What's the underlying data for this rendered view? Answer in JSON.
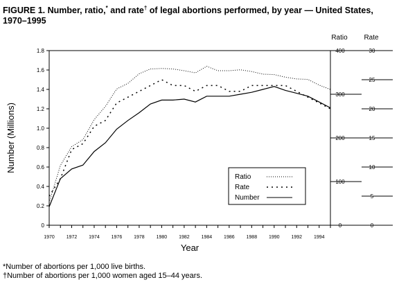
{
  "title": {
    "text": "FIGURE 1. Number, ratio,",
    "mark1": "*",
    "mid": " and rate",
    "mark2": "†",
    "rest": "  of legal abortions performed, by year — United States, 1970–1995"
  },
  "footnotes": {
    "ratio_note": "*Number of abortions per 1,000 live births.",
    "rate_note": "†Number of abortions per 1,000 women aged 15–44 years."
  },
  "chart_data": {
    "type": "line",
    "xlabel": "Year",
    "ylabel": "Number (Millions)",
    "xlim": [
      1970,
      1995
    ],
    "x_ticks": [
      "1970",
      "1972",
      "1974",
      "1976",
      "1978",
      "1980",
      "1982",
      "1984",
      "1986",
      "1988",
      "1990",
      "1992",
      "1994"
    ],
    "ylim": [
      0,
      1.8
    ],
    "y_ticks": [
      "0",
      "0.2",
      "0.4",
      "0.6",
      "0.8",
      "1.0",
      "1.2",
      "1.4",
      "1.6",
      "1.8"
    ],
    "right_axes": [
      {
        "label": "Ratio",
        "lim": [
          0,
          400
        ],
        "ticks": [
          "0",
          "100",
          "200",
          "300",
          "400"
        ]
      },
      {
        "label": "Rate",
        "lim": [
          0,
          30
        ],
        "ticks": [
          "0",
          "5",
          "10",
          "15",
          "20",
          "25",
          "30"
        ]
      }
    ],
    "legend_position": "bottom-right",
    "series": [
      {
        "name": "Ratio",
        "style": "dotted",
        "axis": "Ratio",
        "x": [
          1970,
          1971,
          1972,
          1973,
          1974,
          1975,
          1976,
          1977,
          1978,
          1979,
          1980,
          1981,
          1982,
          1983,
          1984,
          1985,
          1986,
          1987,
          1988,
          1989,
          1990,
          1991,
          1992,
          1993,
          1994,
          1995
        ],
        "values": [
          52,
          137,
          180,
          196,
          242,
          272,
          312,
          325,
          347,
          358,
          359,
          358,
          354,
          349,
          364,
          354,
          354,
          356,
          352,
          346,
          345,
          339,
          335,
          334,
          321,
          311
        ]
      },
      {
        "name": "Rate",
        "style": "dashed",
        "axis": "Rate",
        "x": [
          1970,
          1971,
          1972,
          1973,
          1974,
          1975,
          1976,
          1977,
          1978,
          1979,
          1980,
          1981,
          1982,
          1983,
          1984,
          1985,
          1986,
          1987,
          1988,
          1989,
          1990,
          1991,
          1992,
          1993,
          1994,
          1995
        ],
        "values": [
          5,
          8,
          13,
          14,
          17,
          18,
          21,
          22,
          23,
          24,
          25,
          24,
          24,
          23,
          24,
          24,
          23,
          23,
          24,
          24,
          24,
          24,
          23,
          22,
          21,
          20
        ]
      },
      {
        "name": "Number",
        "style": "solid",
        "axis": "Number (Millions)",
        "x": [
          1970,
          1971,
          1972,
          1973,
          1974,
          1975,
          1976,
          1977,
          1978,
          1979,
          1980,
          1981,
          1982,
          1983,
          1984,
          1985,
          1986,
          1987,
          1988,
          1989,
          1990,
          1991,
          1992,
          1993,
          1994,
          1995
        ],
        "values": [
          0.19,
          0.48,
          0.58,
          0.62,
          0.76,
          0.85,
          0.99,
          1.08,
          1.16,
          1.25,
          1.29,
          1.29,
          1.3,
          1.27,
          1.33,
          1.33,
          1.33,
          1.35,
          1.37,
          1.4,
          1.43,
          1.39,
          1.36,
          1.33,
          1.27,
          1.21
        ]
      }
    ]
  }
}
